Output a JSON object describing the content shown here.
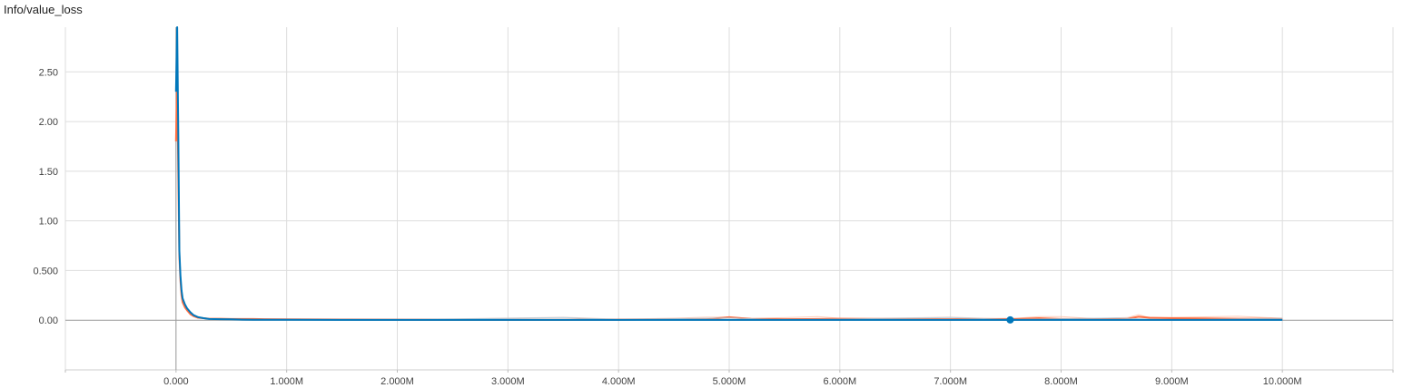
{
  "chart_data": {
    "type": "line",
    "title": "Info/value_loss",
    "xlabel": "",
    "ylabel": "",
    "xlim": [
      -1000000,
      11000000
    ],
    "ylim": [
      -0.5,
      2.95
    ],
    "grid": true,
    "x_ticks": [
      0,
      1000000,
      2000000,
      3000000,
      4000000,
      5000000,
      6000000,
      7000000,
      8000000,
      9000000,
      10000000
    ],
    "x_tick_labels": [
      "0.000",
      "1.000M",
      "2.000M",
      "3.000M",
      "4.000M",
      "5.000M",
      "6.000M",
      "7.000M",
      "8.000M",
      "9.000M",
      "10.000M"
    ],
    "y_ticks": [
      0.0,
      0.5,
      1.0,
      1.5,
      2.0,
      2.5
    ],
    "y_tick_labels": [
      "0.00",
      "0.500",
      "1.00",
      "1.50",
      "2.00",
      "2.50"
    ],
    "series": [
      {
        "color": "#ff7043",
        "raw_color": "#ffc1a8",
        "x": [
          0,
          10000,
          20000,
          30000,
          40000,
          50000,
          60000,
          80000,
          100000,
          130000,
          160000,
          200000,
          250000,
          300000,
          400000,
          500000,
          600000,
          700000,
          800000,
          1000000,
          1500000,
          2000000,
          2500000,
          3000000,
          3500000,
          4000000,
          4500000,
          4800000,
          5000000,
          5200000,
          5500000,
          5800000,
          6000000,
          6500000,
          7000000,
          7500000,
          7600000,
          7800000,
          8000000,
          8300000,
          8600000,
          8700000,
          8800000,
          9000000,
          9300000,
          9600000,
          10000000
        ],
        "y": [
          1.8,
          2.42,
          1.5,
          0.65,
          0.4,
          0.25,
          0.18,
          0.13,
          0.1,
          0.06,
          0.04,
          0.025,
          0.02,
          0.015,
          0.015,
          0.012,
          0.012,
          0.012,
          0.01,
          0.008,
          0.007,
          0.006,
          0.005,
          0.005,
          0.005,
          0.006,
          0.008,
          0.01,
          0.03,
          0.012,
          0.01,
          0.012,
          0.015,
          0.01,
          0.01,
          0.012,
          0.012,
          0.02,
          0.012,
          0.012,
          0.015,
          0.035,
          0.025,
          0.02,
          0.018,
          0.015,
          0.015
        ]
      },
      {
        "color": "#0077bb",
        "raw_color": "#a6cfe6",
        "x": [
          0,
          10000,
          20000,
          30000,
          40000,
          50000,
          60000,
          80000,
          100000,
          130000,
          160000,
          200000,
          250000,
          300000,
          400000,
          500000,
          600000,
          700000,
          800000,
          1000000,
          1500000,
          2000000,
          2500000,
          3000000,
          3500000,
          4000000,
          4500000,
          5000000,
          5500000,
          6000000,
          6500000,
          7000000,
          7540000,
          8000000,
          8500000,
          9000000,
          9500000,
          10000000
        ],
        "y": [
          2.3,
          2.95,
          1.9,
          0.7,
          0.45,
          0.3,
          0.22,
          0.16,
          0.12,
          0.08,
          0.05,
          0.03,
          0.02,
          0.012,
          0.01,
          0.008,
          0.006,
          0.005,
          0.004,
          0.004,
          0.003,
          0.003,
          0.003,
          0.003,
          0.003,
          0.003,
          0.003,
          0.003,
          0.003,
          0.003,
          0.003,
          0.003,
          0.003,
          0.003,
          0.003,
          0.003,
          0.003,
          0.003
        ]
      }
    ],
    "marker": {
      "x": 7540000,
      "y": 0.003,
      "color": "#0077bb"
    }
  }
}
